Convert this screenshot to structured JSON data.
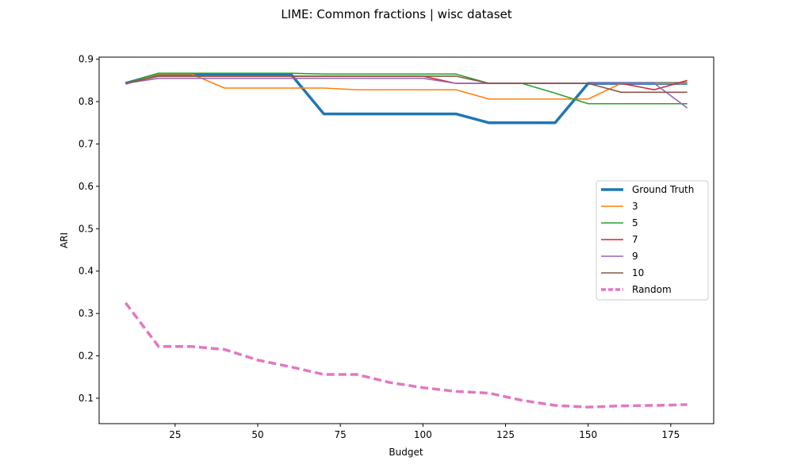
{
  "chart_data": {
    "type": "line",
    "title": "LIME: Common fractions | wisc dataset",
    "xlabel": "Budget",
    "ylabel": "ARI",
    "xlim": [
      2,
      188
    ],
    "ylim": [
      0.04,
      0.905
    ],
    "xticks": [
      25,
      50,
      75,
      100,
      125,
      150,
      175
    ],
    "yticks": [
      0.1,
      0.2,
      0.3,
      0.4,
      0.5,
      0.6,
      0.7,
      0.8,
      0.9
    ],
    "grid": false,
    "legend_position": "center-right",
    "x": [
      10,
      20,
      30,
      40,
      50,
      60,
      70,
      80,
      90,
      100,
      110,
      120,
      130,
      140,
      150,
      160,
      170,
      180
    ],
    "series": [
      {
        "name": "Ground Truth",
        "color": "#1f77b4",
        "style": "solid-thick",
        "values": [
          0.843,
          0.865,
          0.865,
          0.865,
          0.865,
          0.865,
          0.771,
          0.771,
          0.771,
          0.771,
          0.771,
          0.75,
          0.75,
          0.75,
          0.843,
          0.843,
          0.843,
          0.843
        ]
      },
      {
        "name": "3",
        "color": "#ff7f0e",
        "style": "solid",
        "values": [
          0.843,
          0.865,
          0.865,
          0.832,
          0.832,
          0.832,
          0.832,
          0.828,
          0.828,
          0.828,
          0.828,
          0.806,
          0.806,
          0.806,
          0.806,
          0.843,
          0.843,
          0.843
        ]
      },
      {
        "name": "5",
        "color": "#2ca02c",
        "style": "solid",
        "values": [
          0.843,
          0.867,
          0.867,
          0.867,
          0.867,
          0.867,
          0.865,
          0.865,
          0.865,
          0.865,
          0.865,
          0.843,
          0.843,
          0.82,
          0.795,
          0.795,
          0.795,
          0.795
        ]
      },
      {
        "name": "7",
        "color": "#d62728",
        "style": "solid",
        "values": [
          0.843,
          0.86,
          0.86,
          0.86,
          0.86,
          0.86,
          0.86,
          0.86,
          0.86,
          0.86,
          0.843,
          0.843,
          0.843,
          0.843,
          0.843,
          0.843,
          0.828,
          0.85
        ]
      },
      {
        "name": "9",
        "color": "#9467bd",
        "style": "solid",
        "values": [
          0.843,
          0.855,
          0.855,
          0.855,
          0.855,
          0.855,
          0.855,
          0.855,
          0.855,
          0.855,
          0.843,
          0.843,
          0.843,
          0.843,
          0.843,
          0.843,
          0.843,
          0.785
        ]
      },
      {
        "name": "10",
        "color": "#8c564b",
        "style": "solid",
        "values": [
          0.843,
          0.86,
          0.86,
          0.86,
          0.86,
          0.86,
          0.86,
          0.86,
          0.86,
          0.86,
          0.86,
          0.843,
          0.843,
          0.843,
          0.843,
          0.822,
          0.822,
          0.822
        ]
      },
      {
        "name": "Random",
        "color": "#e377c2",
        "style": "dashed-thick",
        "values": [
          0.325,
          0.222,
          0.222,
          0.215,
          0.19,
          0.174,
          0.156,
          0.156,
          0.137,
          0.125,
          0.116,
          0.112,
          0.095,
          0.083,
          0.079,
          0.082,
          0.083,
          0.085
        ]
      }
    ]
  }
}
